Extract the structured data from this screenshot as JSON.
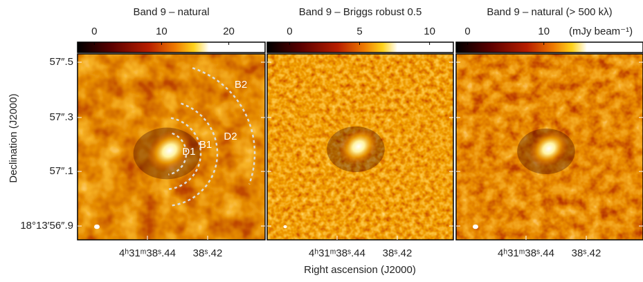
{
  "panels": [
    {
      "title": "Band 9 – natural",
      "colorbar": {
        "lim": [
          -2.5,
          25.4
        ],
        "ticks": [
          0,
          10,
          20
        ]
      },
      "annotations": [
        "D1",
        "B1",
        "D2",
        "B2"
      ]
    },
    {
      "title": "Band 9 – Briggs robust 0.5",
      "colorbar": {
        "lim": [
          -1.6,
          11.7
        ],
        "ticks": [
          0,
          5,
          10
        ]
      }
    },
    {
      "title": "Band 9 – natural (> 500 kλ)",
      "colorbar": {
        "lim": [
          -1.5,
          23
        ],
        "ticks": [
          0,
          10
        ]
      }
    }
  ],
  "colorbar_unit": "(mJy beam⁻¹)",
  "y_axis": {
    "label": "Declination (J2000)",
    "ticks": [
      "57″.5",
      "57″.3",
      "57″.1",
      "18°13′56″.9"
    ]
  },
  "x_axis": {
    "label": "Right ascension (J2000)",
    "ticks": [
      "4ʰ31ᵐ38ˢ.44",
      "38ˢ.42"
    ]
  }
}
